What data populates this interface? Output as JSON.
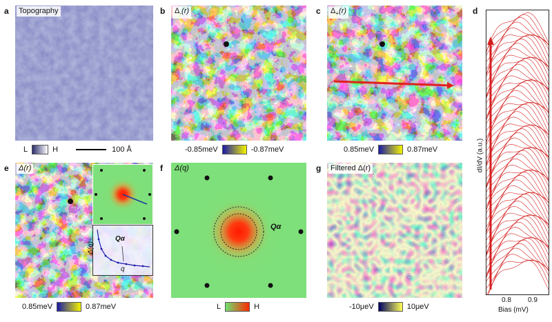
{
  "panels": {
    "a": {
      "letter": "a",
      "title": "Topography",
      "low": "L",
      "high": "H",
      "scalebar": "100 Å"
    },
    "b": {
      "letter": "b",
      "title_main": "Δ",
      "title_sub": "-",
      "title_arg": "(r)",
      "min": "-0.85meV",
      "max": "-0.87meV"
    },
    "c": {
      "letter": "c",
      "title_main": "Δ",
      "title_sub": "+",
      "title_arg": "(r)",
      "min": "0.85meV",
      "max": "0.87meV"
    },
    "d": {
      "letter": "d",
      "ylabel": "dI/dV (a.u.)",
      "xlabel": "Bias (mV)",
      "ticks": [
        "0.8",
        "0.9"
      ]
    },
    "e": {
      "letter": "e",
      "title": "Δ(r)",
      "min": "0.85meV",
      "max": "0.87meV",
      "inset_ylabel": "Δ(q)",
      "inset_xlabel": "q",
      "inset_q": "Qα"
    },
    "f": {
      "letter": "f",
      "title": "Δ(q)",
      "low": "L",
      "high": "H",
      "q_label": "Qα"
    },
    "g": {
      "letter": "g",
      "title": "Filtered Δ(r)",
      "min": "-10μeV",
      "max": "10μeV"
    }
  },
  "colors": {
    "topo_bar": [
      "#2b2e6b",
      "#ffffff"
    ],
    "gap_bar": [
      "#1a1aa8",
      "#f4f400"
    ],
    "fft_bar": [
      "#6fe06f",
      "#ff2a00"
    ],
    "filtered_bar": [
      "#000066",
      "#ffff55"
    ],
    "spectra": "#d42020"
  }
}
